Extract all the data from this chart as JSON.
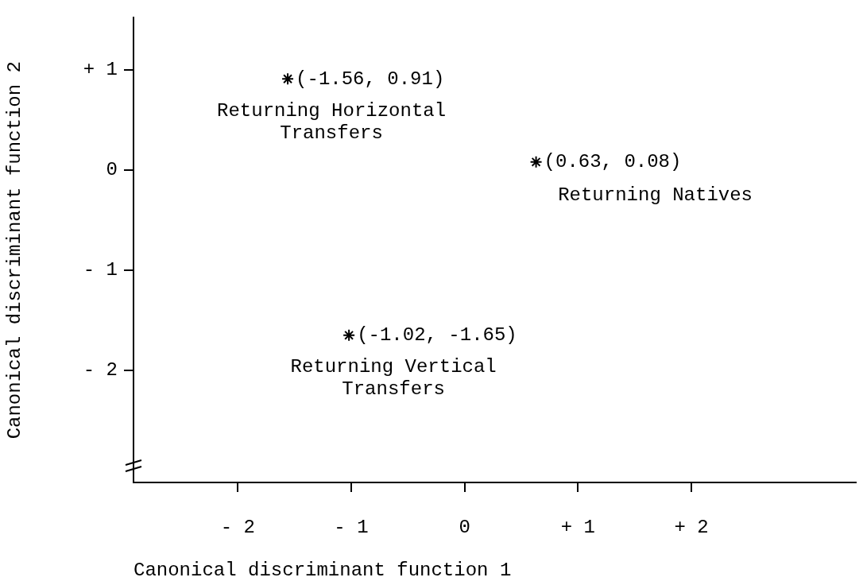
{
  "chart_data": {
    "type": "scatter",
    "xlabel": "Canonical discriminant function 1",
    "ylabel": "Canonical discriminant function 2",
    "xlim": [
      -2.92,
      3.45
    ],
    "ylim": [
      -3.12,
      1.52
    ],
    "xticks": [
      {
        "value": -2,
        "label": "- 2"
      },
      {
        "value": -1,
        "label": "- 1"
      },
      0,
      {
        "value": 1,
        "label": "+ 1"
      },
      {
        "value": 2,
        "label": "+ 2"
      }
    ],
    "yticks": [
      {
        "value": -2,
        "label": "- 2"
      },
      {
        "value": -1,
        "label": "- 1"
      },
      0,
      {
        "value": 1,
        "label": "+ 1"
      }
    ],
    "marker": "cross",
    "legend": false,
    "grid": false,
    "series": [
      {
        "name": "Returning Horizontal Transfers",
        "color": "#000000",
        "x": [
          -1.56
        ],
        "values": [
          0.91
        ],
        "value_labels": [
          "(-1.56, 0.91)"
        ]
      },
      {
        "name": "Returning Natives",
        "color": "#000000",
        "x": [
          0.63
        ],
        "values": [
          0.08
        ],
        "value_labels": [
          "(0.63, 0.08)"
        ]
      },
      {
        "name": "Returning Vertical Transfers",
        "color": "#000000",
        "x": [
          -1.02
        ],
        "values": [
          -1.65
        ],
        "value_labels": [
          "(-1.02, -1.65)"
        ]
      }
    ]
  }
}
